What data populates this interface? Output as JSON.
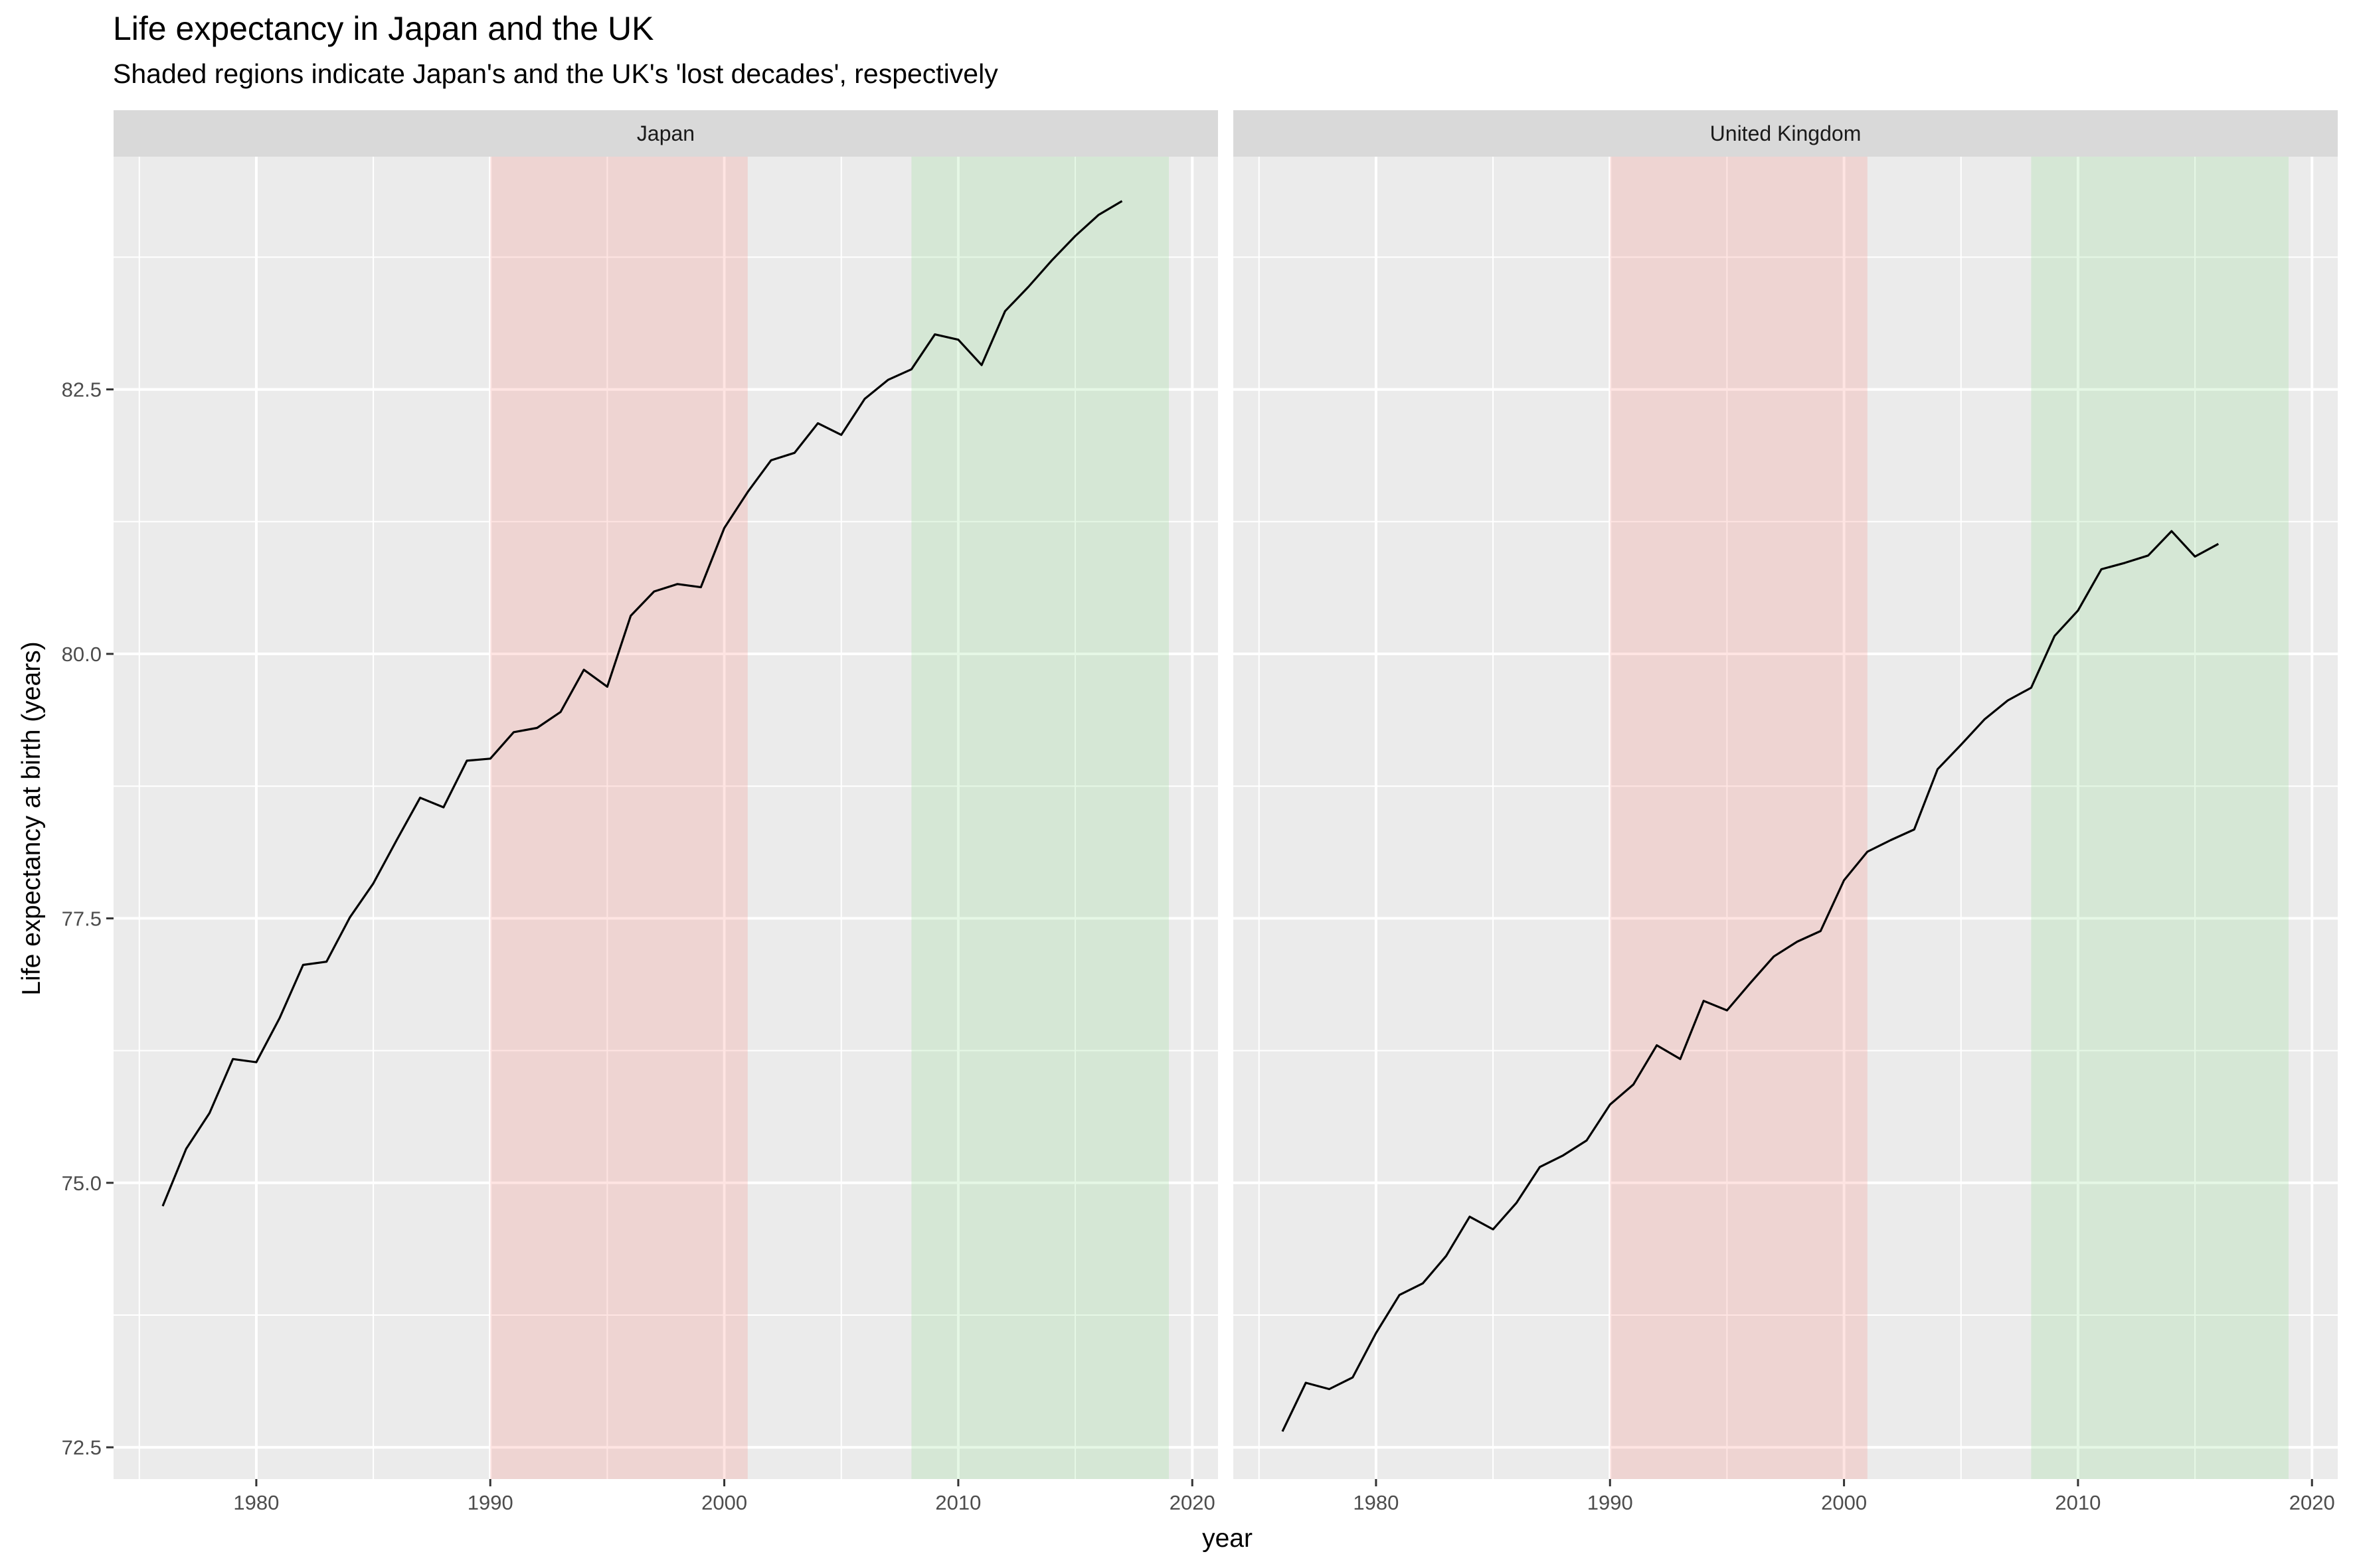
{
  "title": "Life expectancy in Japan and the UK",
  "subtitle": "Shaded regions indicate Japan's and the UK's 'lost decades', respectively",
  "colors": {
    "panel_bg": "#ebebeb",
    "strip_bg": "#d9d9d9",
    "grid": "#ffffff",
    "line": "#000000",
    "shade_red": "#f8766d",
    "shade_green": "#7cd97c",
    "axis_text": "#4d4d4d"
  },
  "chart_data": {
    "type": "line",
    "xlabel": "year",
    "ylabel": "Life expectancy at birth (years)",
    "xlim": [
      1973.9,
      2021.1
    ],
    "ylim": [
      72.2,
      84.7
    ],
    "x_ticks": [
      1980,
      1990,
      2000,
      2010,
      2020
    ],
    "y_ticks": [
      72.5,
      75.0,
      77.5,
      80.0,
      82.5
    ],
    "y_tick_labels": [
      "72.5",
      "75.0",
      "77.5",
      "80.0",
      "82.5"
    ],
    "grid": true,
    "shaded_regions": [
      {
        "xmin": 1990,
        "xmax": 2001,
        "color": "red"
      },
      {
        "xmin": 2008,
        "xmax": 2019,
        "color": "green"
      }
    ],
    "facets": [
      {
        "label": "Japan",
        "x": [
          1976,
          1977,
          1978,
          1979,
          1980,
          1981,
          1982,
          1983,
          1984,
          1985,
          1986,
          1987,
          1988,
          1989,
          1990,
          1991,
          1992,
          1993,
          1994,
          1995,
          1996,
          1997,
          1998,
          1999,
          2000,
          2001,
          2002,
          2003,
          2004,
          2005,
          2006,
          2007,
          2008,
          2009,
          2010,
          2011,
          2012,
          2013,
          2014,
          2015,
          2016,
          2017
        ],
        "y": [
          74.78,
          75.32,
          75.66,
          76.17,
          76.14,
          76.56,
          77.06,
          77.09,
          77.51,
          77.83,
          78.24,
          78.64,
          78.55,
          78.99,
          79.01,
          79.26,
          79.3,
          79.45,
          79.85,
          79.69,
          80.36,
          80.59,
          80.66,
          80.63,
          81.19,
          81.53,
          81.83,
          81.9,
          82.18,
          82.07,
          82.41,
          82.59,
          82.69,
          83.02,
          82.97,
          82.73,
          83.24,
          83.47,
          83.72,
          83.95,
          84.15,
          84.28
        ]
      },
      {
        "label": "United Kingdom",
        "x": [
          1976,
          1977,
          1978,
          1979,
          1980,
          1981,
          1982,
          1983,
          1984,
          1985,
          1986,
          1987,
          1988,
          1989,
          1990,
          1991,
          1992,
          1993,
          1994,
          1995,
          1996,
          1997,
          1998,
          1999,
          2000,
          2001,
          2002,
          2003,
          2004,
          2005,
          2006,
          2007,
          2008,
          2009,
          2010,
          2011,
          2012,
          2013,
          2014,
          2015,
          2016
        ],
        "y": [
          72.65,
          73.11,
          73.05,
          73.16,
          73.58,
          73.94,
          74.05,
          74.31,
          74.68,
          74.56,
          74.81,
          75.15,
          75.26,
          75.4,
          75.74,
          75.93,
          76.3,
          76.17,
          76.72,
          76.63,
          76.89,
          77.14,
          77.28,
          77.38,
          77.86,
          78.13,
          78.24,
          78.34,
          78.91,
          79.14,
          79.38,
          79.56,
          79.68,
          80.17,
          80.41,
          80.8,
          80.86,
          80.93,
          81.16,
          80.92,
          81.04
        ]
      }
    ]
  }
}
